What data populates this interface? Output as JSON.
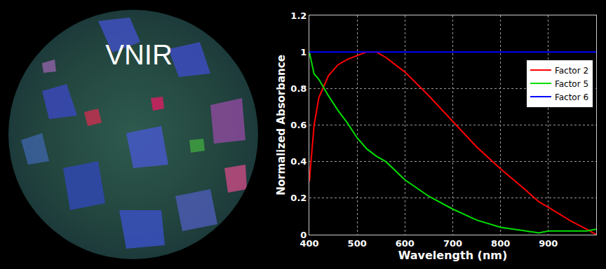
{
  "image": {
    "label": "VNIR"
  },
  "chart_data": {
    "type": "line",
    "x_label": "Wavelength (nm)",
    "y_label": "Normalized Absorbance",
    "x": [
      400,
      410,
      420,
      440,
      460,
      480,
      500,
      520,
      540,
      560,
      600,
      650,
      700,
      750,
      800,
      850,
      880,
      900,
      950,
      980,
      1000
    ],
    "series": [
      {
        "name": "Factor 2",
        "color": "#ff0000",
        "values": [
          0.29,
          0.6,
          0.75,
          0.87,
          0.93,
          0.96,
          0.98,
          1.0,
          1.0,
          0.97,
          0.89,
          0.76,
          0.62,
          0.48,
          0.36,
          0.25,
          0.18,
          0.15,
          0.07,
          0.03,
          0.0
        ]
      },
      {
        "name": "Factor 5",
        "color": "#00dd00",
        "values": [
          1.0,
          0.88,
          0.85,
          0.76,
          0.68,
          0.61,
          0.53,
          0.47,
          0.43,
          0.4,
          0.3,
          0.21,
          0.14,
          0.08,
          0.04,
          0.02,
          0.01,
          0.02,
          0.02,
          0.02,
          0.03
        ]
      },
      {
        "name": "Factor 6",
        "color": "#0000ff",
        "values": [
          1,
          1,
          1,
          1,
          1,
          1,
          1,
          1,
          1,
          1,
          1,
          1,
          1,
          1,
          1,
          1,
          1,
          1,
          1,
          1,
          1
        ]
      }
    ],
    "xlim": [
      400,
      1000
    ],
    "xticks": [
      400,
      500,
      600,
      700,
      800,
      900
    ],
    "ylim": [
      0,
      1.2
    ],
    "yticks": [
      0,
      0.2,
      0.4,
      0.6,
      0.8,
      1,
      1.2
    ],
    "grid": true,
    "legend": "upper right"
  }
}
